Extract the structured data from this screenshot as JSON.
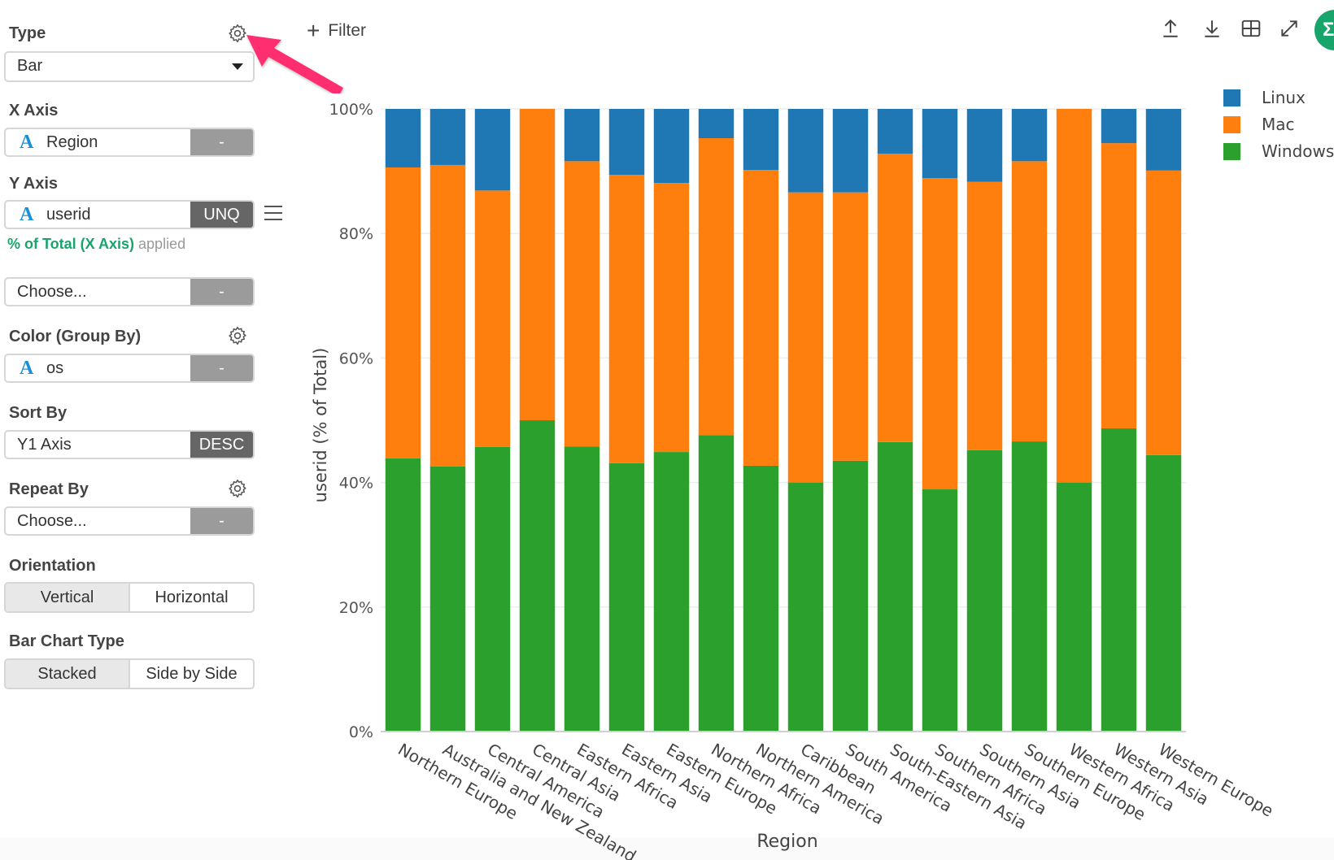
{
  "sidebar": {
    "type_label": "Type",
    "type_value": "Bar",
    "x_axis_label": "X Axis",
    "x_axis_value": "Region",
    "x_axis_button": "-",
    "y_axis_label": "Y Axis",
    "y_axis_value": "userid",
    "y_axis_button": "UNQ",
    "y_axis_note_highlight": "% of Total (X Axis)",
    "y_axis_note_suffix": "applied",
    "y2_value": "Choose...",
    "y2_button": "-",
    "color_label": "Color (Group By)",
    "color_value": "os",
    "color_button": "-",
    "sort_label": "Sort By",
    "sort_value": "Y1 Axis",
    "sort_button": "DESC",
    "repeat_label": "Repeat By",
    "repeat_value": "Choose...",
    "repeat_button": "-",
    "orientation_label": "Orientation",
    "orientation_options": [
      "Vertical",
      "Horizontal"
    ],
    "orientation_selected": "Vertical",
    "bar_type_label": "Bar Chart Type",
    "bar_type_options": [
      "Stacked",
      "Side by Side"
    ],
    "bar_type_selected": "Stacked",
    "field_type_glyph": "A"
  },
  "toolbar": {
    "filter_label": "Filter",
    "icons": [
      "upload-icon",
      "download-icon",
      "table-icon",
      "expand-icon",
      "sigma-icon"
    ],
    "sigma_glyph": "Σ"
  },
  "colors": {
    "Linux": "#1f77b4",
    "Mac": "#ff7f0e",
    "Windows": "#2ca02c",
    "accent": "#17a56b",
    "annotation_arrow": "#ff2d6f"
  },
  "chart_data": {
    "type": "bar",
    "stacked": true,
    "title": "",
    "xlabel": "Region",
    "ylabel": "userid (% of Total)",
    "ylim": [
      0,
      100
    ],
    "yticks": [
      "0%",
      "20%",
      "40%",
      "60%",
      "80%",
      "100%"
    ],
    "grid": true,
    "legend_position": "top-right",
    "categories": [
      "Northern Europe",
      "Australia and New Zealand",
      "Central America",
      "Central Asia",
      "Eastern Africa",
      "Eastern Asia",
      "Eastern Europe",
      "Northern Africa",
      "Northern America",
      "Caribbean",
      "South America",
      "South-Eastern Asia",
      "Southern Africa",
      "Southern Asia",
      "Southern Europe",
      "Western Africa",
      "Western Asia",
      "Western Europe"
    ],
    "series": [
      {
        "name": "Windows",
        "values": [
          43.9,
          42.6,
          45.7,
          50.0,
          45.8,
          43.1,
          44.9,
          47.6,
          42.7,
          40.0,
          43.5,
          46.5,
          38.9,
          45.2,
          46.6,
          40.0,
          48.7,
          44.4
        ]
      },
      {
        "name": "Mac",
        "values": [
          46.7,
          48.4,
          41.2,
          50.0,
          45.8,
          46.3,
          43.2,
          47.7,
          47.5,
          46.6,
          43.1,
          46.3,
          50.0,
          43.1,
          45.0,
          60.0,
          45.8,
          45.7
        ]
      },
      {
        "name": "Linux",
        "values": [
          9.4,
          9.0,
          13.1,
          0.0,
          8.4,
          10.6,
          11.9,
          4.7,
          9.8,
          13.4,
          13.4,
          7.2,
          11.1,
          11.7,
          8.4,
          0.0,
          5.5,
          9.9
        ]
      }
    ]
  }
}
